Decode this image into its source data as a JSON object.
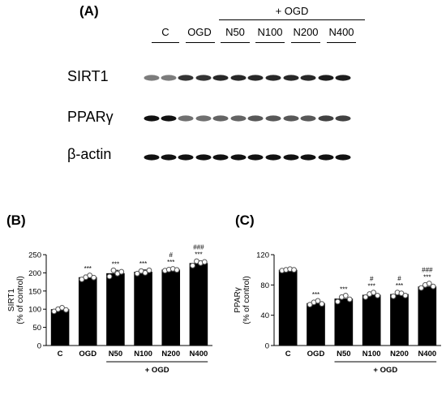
{
  "panels": {
    "a_label": "(A)",
    "b_label": "(B)",
    "c_label": "(C)"
  },
  "blot": {
    "group_label": "+ OGD",
    "lanes": [
      "C",
      "OGD",
      "N50",
      "N100",
      "N200",
      "N400"
    ],
    "rows": [
      {
        "label": "SIRT1",
        "intensity": [
          0.55,
          0.85,
          0.9,
          0.9,
          0.9,
          0.95
        ]
      },
      {
        "label": "PPARγ",
        "intensity": [
          1.0,
          0.6,
          0.65,
          0.7,
          0.7,
          0.8
        ]
      },
      {
        "label": "β-actin",
        "intensity": [
          1.0,
          1.0,
          1.0,
          1.0,
          1.0,
          1.0
        ]
      }
    ]
  },
  "chart_data": [
    {
      "type": "bar",
      "ylabel_line1": "SIRT1",
      "ylabel_line2": "(% of control)",
      "categories": [
        "C",
        "OGD",
        "N50",
        "N100",
        "N200",
        "N400"
      ],
      "values": [
        100,
        188,
        199,
        203,
        209,
        227
      ],
      "errors": [
        4,
        6,
        8,
        5,
        3,
        6
      ],
      "points": [
        [
          94,
          100,
          104,
          98
        ],
        [
          182,
          188,
          193,
          187
        ],
        [
          190,
          207,
          198,
          203
        ],
        [
          198,
          205,
          200,
          207
        ],
        [
          206,
          209,
          211,
          208
        ],
        [
          220,
          232,
          227,
          230
        ]
      ],
      "ylim": [
        0,
        250
      ],
      "yticks": [
        0,
        50,
        100,
        150,
        200,
        250
      ],
      "stars": [
        "",
        "***",
        "***",
        "***",
        "***",
        "***"
      ],
      "hashes": [
        "",
        "",
        "",
        "",
        "#",
        "###"
      ],
      "group_label": "+ OGD",
      "group_start": 2
    },
    {
      "type": "bar",
      "ylabel_line1": "PPARγ",
      "ylabel_line2": "(% of control)",
      "categories": [
        "C",
        "OGD",
        "N50",
        "N100",
        "N200",
        "N400"
      ],
      "values": [
        100,
        56,
        62,
        67,
        68,
        78
      ],
      "errors": [
        1,
        2.5,
        2.5,
        2.5,
        2.5,
        2
      ],
      "points": [
        [
          99,
          100,
          101,
          100
        ],
        [
          54,
          57,
          59,
          55
        ],
        [
          58,
          64,
          66,
          61
        ],
        [
          64,
          68,
          70,
          66
        ],
        [
          65,
          70,
          69,
          66
        ],
        [
          76,
          80,
          82,
          78
        ]
      ],
      "ylim": [
        0,
        120
      ],
      "yticks": [
        0,
        40,
        80,
        120
      ],
      "stars": [
        "",
        "***",
        "***",
        "***",
        "***",
        "***"
      ],
      "hashes": [
        "",
        "",
        "",
        "#",
        "#",
        "###"
      ],
      "group_label": "+ OGD",
      "group_start": 2
    }
  ]
}
